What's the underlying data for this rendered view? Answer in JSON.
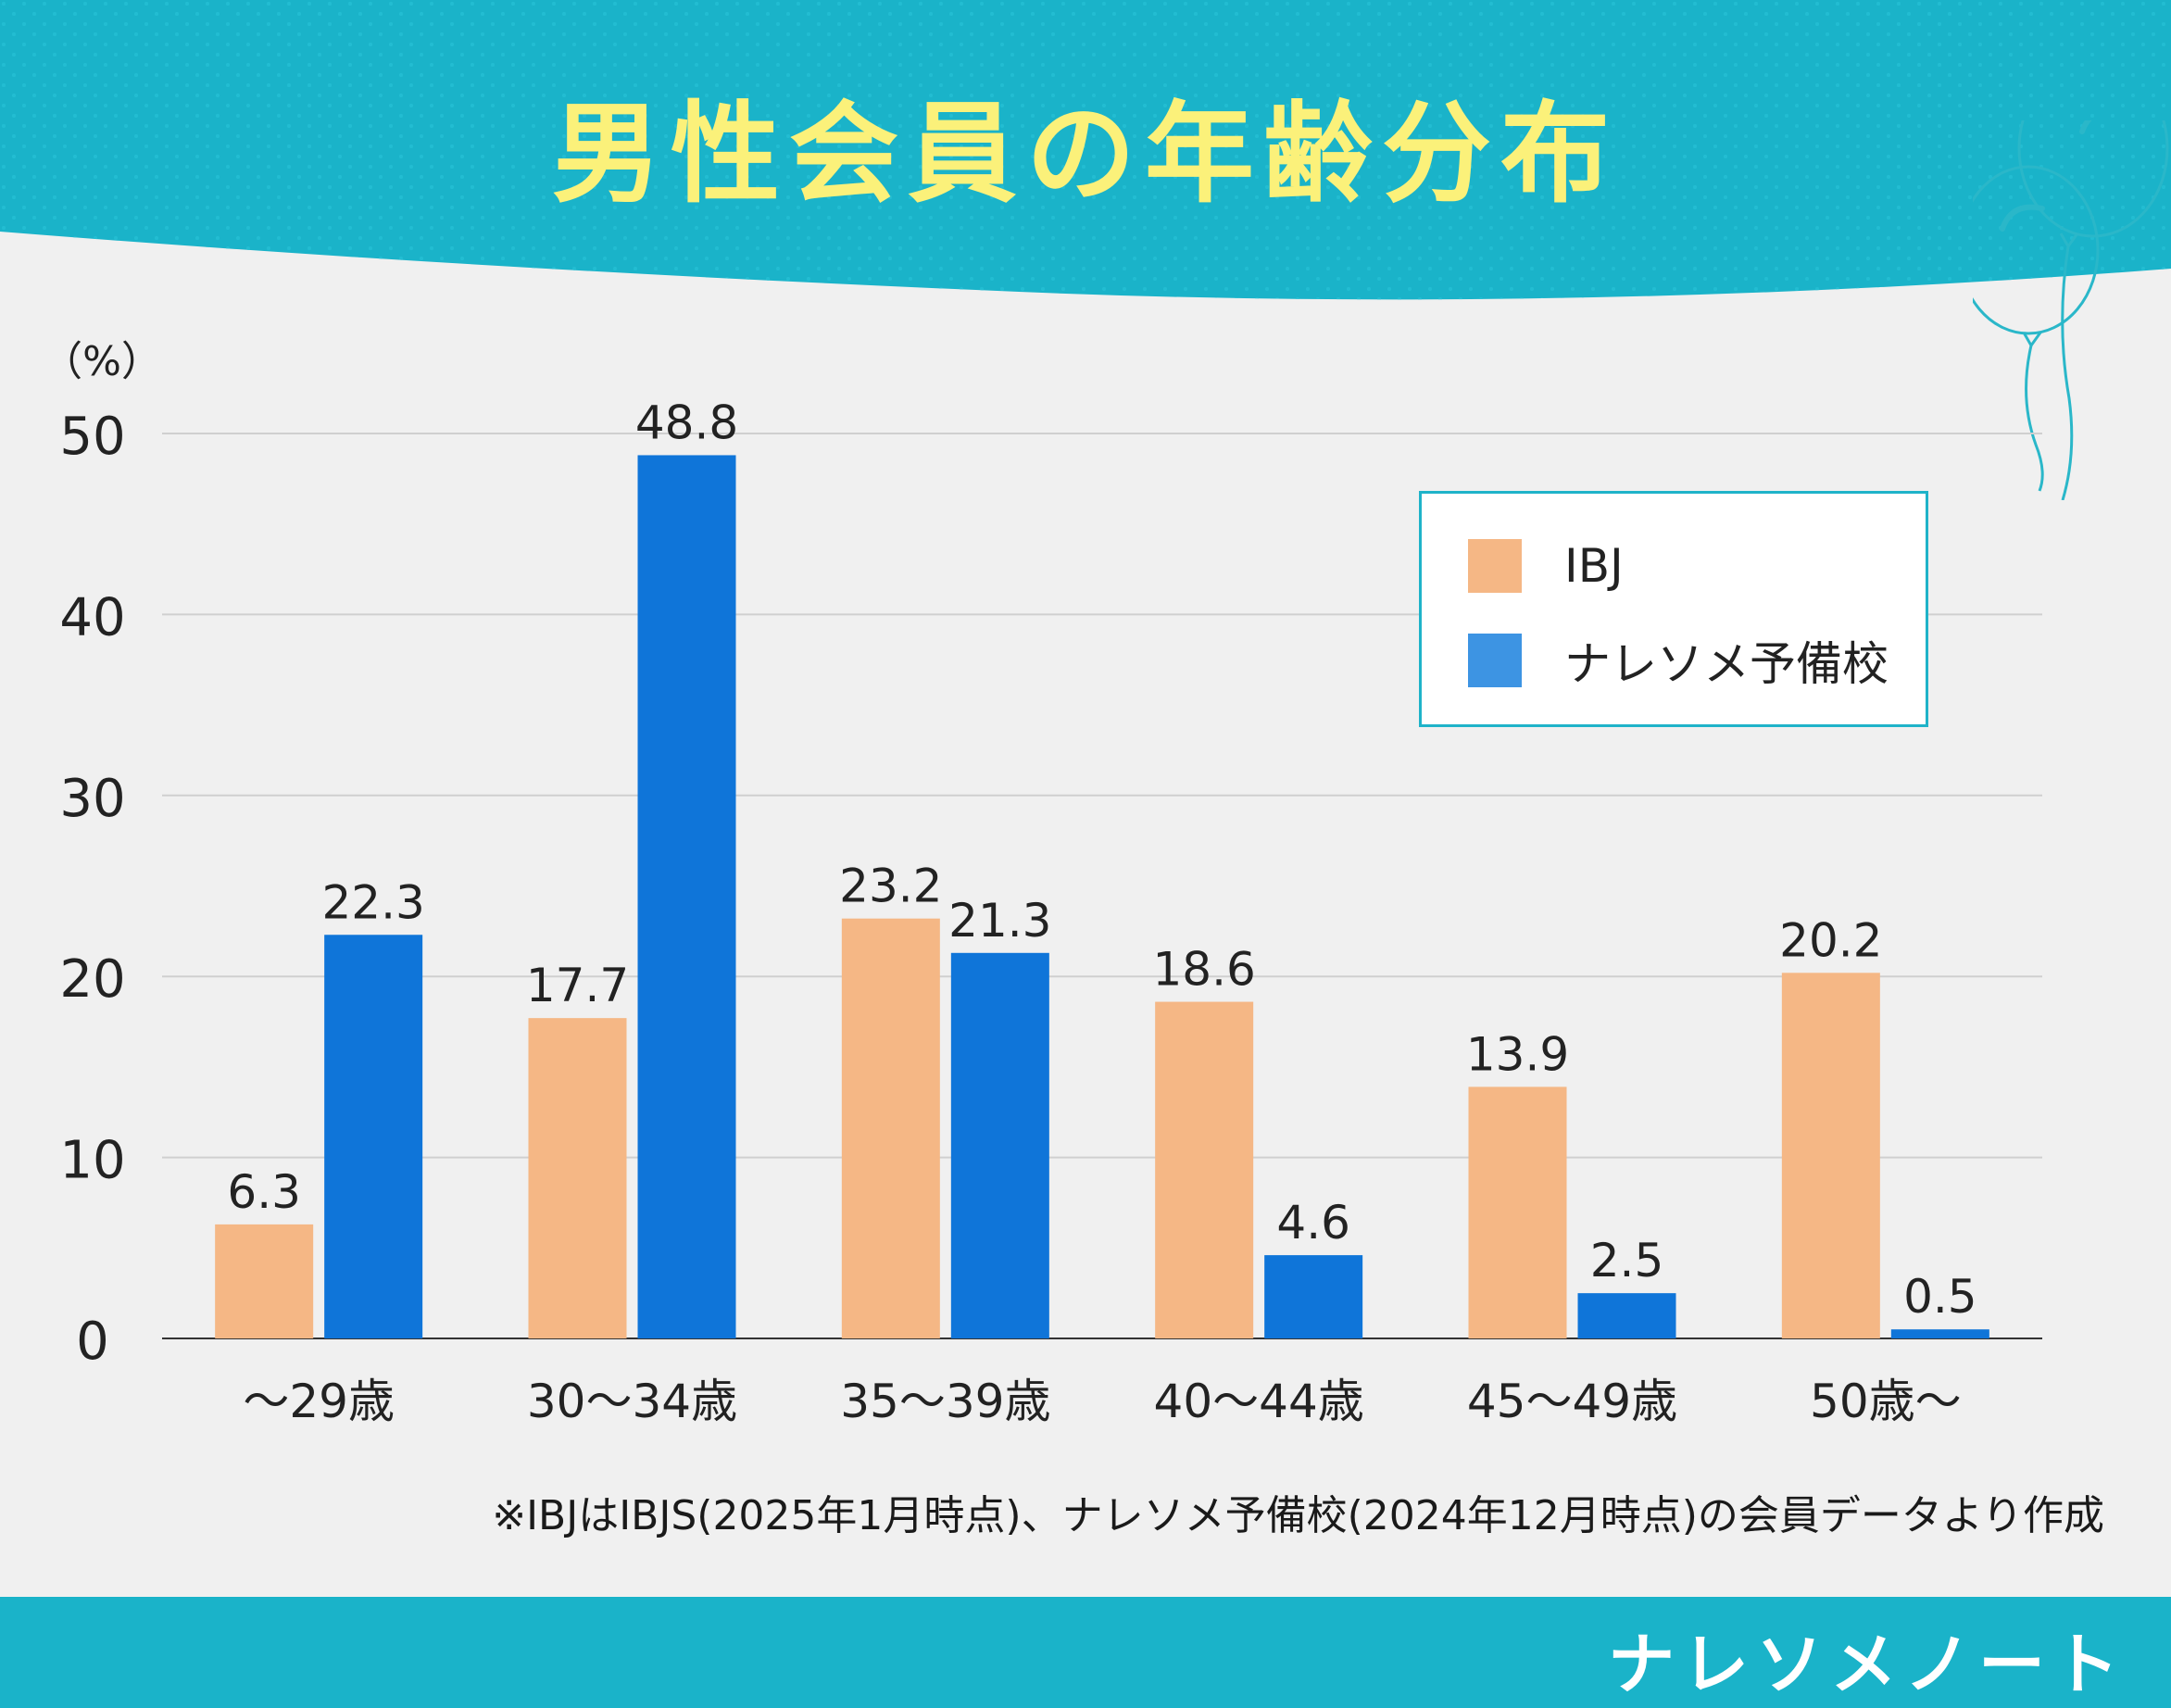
{
  "title": "男性会員の年齢分布",
  "note": "※IBJはIBJS(2025年1月時点)、ナレソメ予備校(2024年12月時点)の会員データより作成",
  "brand": "ナレソメノート",
  "colors": {
    "header_bg": "#1ab3c9",
    "title_text": "#fbf17a",
    "background": "#f0f0f0",
    "legend_border": "#1fb3c9"
  },
  "icons": [
    "balloon-icon"
  ],
  "chart_data": {
    "type": "bar",
    "title": "男性会員の年齢分布",
    "ylabel": "（%）",
    "xlabel": "",
    "ylim": [
      0,
      50
    ],
    "yticks": [
      0,
      10,
      20,
      30,
      40,
      50
    ],
    "grid": true,
    "legend_position": "top-right",
    "categories": [
      "～29歳",
      "30～34歳",
      "35～39歳",
      "40～44歳",
      "45～49歳",
      "50歳～"
    ],
    "series": [
      {
        "name": "IBJ",
        "color": "#f5b785",
        "values": [
          6.3,
          17.7,
          23.2,
          18.6,
          13.9,
          20.2
        ]
      },
      {
        "name": "ナレソメ予備校",
        "color": "#0f75d9",
        "values": [
          22.3,
          48.8,
          21.3,
          4.6,
          2.5,
          0.5
        ]
      }
    ]
  }
}
